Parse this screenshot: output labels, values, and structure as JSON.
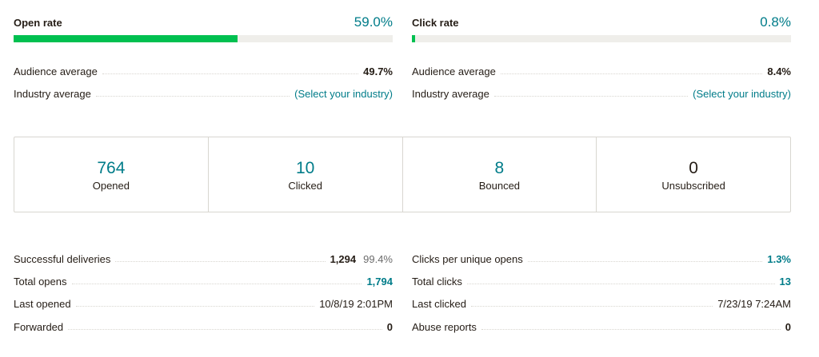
{
  "open_rate": {
    "title": "Open rate",
    "value": "59.0%",
    "fill_fraction": 0.59,
    "audience_label": "Audience average",
    "audience_value": "49.7%",
    "industry_label": "Industry average",
    "industry_value": "(Select your industry)"
  },
  "click_rate": {
    "title": "Click rate",
    "value": "0.8%",
    "fill_fraction": 0.008,
    "audience_label": "Audience average",
    "audience_value": "8.4%",
    "industry_label": "Industry average",
    "industry_value": "(Select your industry)"
  },
  "stats": [
    {
      "number": "764",
      "label": "Opened"
    },
    {
      "number": "10",
      "label": "Clicked"
    },
    {
      "number": "8",
      "label": "Bounced"
    },
    {
      "number": "0",
      "label": "Unsubscribed"
    }
  ],
  "details_left": {
    "successful_deliveries": {
      "label": "Successful deliveries",
      "value": "1,294",
      "percent": "99.4%"
    },
    "total_opens": {
      "label": "Total opens",
      "value": "1,794"
    },
    "last_opened": {
      "label": "Last opened",
      "value": "10/8/19 2:01PM"
    },
    "forwarded": {
      "label": "Forwarded",
      "value": "0"
    }
  },
  "details_right": {
    "clicks_per_unique_opens": {
      "label": "Clicks per unique opens",
      "value": "1.3%"
    },
    "total_clicks": {
      "label": "Total clicks",
      "value": "13"
    },
    "last_clicked": {
      "label": "Last clicked",
      "value": "7/23/19 7:24AM"
    },
    "abuse_reports": {
      "label": "Abuse reports",
      "value": "0"
    }
  },
  "colors": {
    "accent": "#007c89",
    "progress_fill": "#00c050",
    "progress_track": "#efeeea",
    "text": "#241c15"
  }
}
